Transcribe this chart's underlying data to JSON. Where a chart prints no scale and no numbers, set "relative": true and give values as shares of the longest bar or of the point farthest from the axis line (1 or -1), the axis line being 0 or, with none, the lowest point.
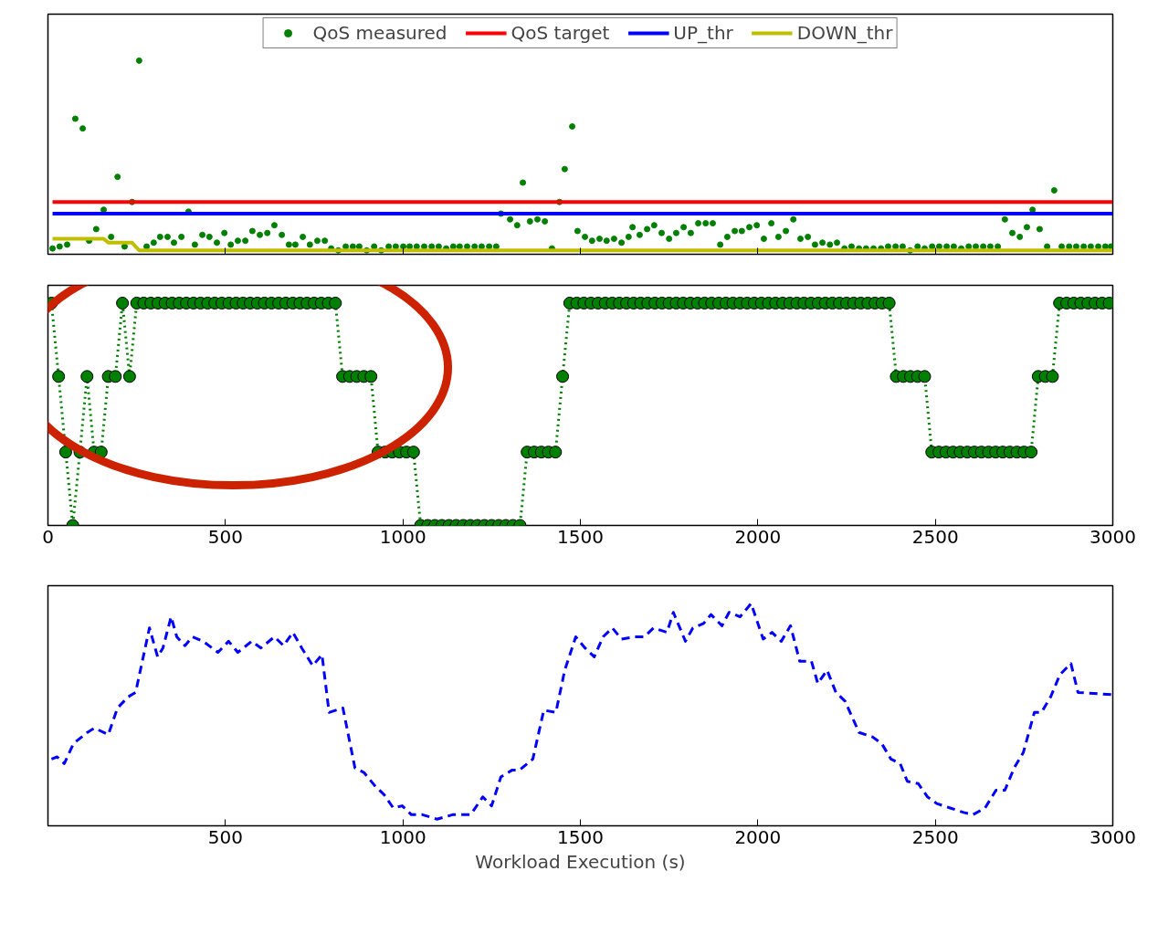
{
  "chart_data": [
    {
      "type": "scatter",
      "relative": true,
      "xlim": [
        0,
        3000
      ],
      "xticks": [
        0,
        500,
        1000,
        1500,
        2000,
        2500,
        3000
      ],
      "tick_labels": false,
      "legend": "top",
      "grid": false,
      "series": [
        {
          "name": "QoS measured",
          "type": "scatter",
          "marker": "circle",
          "color": "#008000",
          "x": [
            13,
            33,
            54,
            77,
            98,
            116,
            136,
            157,
            178,
            196,
            216,
            237,
            257,
            278,
            298,
            316,
            337,
            355,
            376,
            396,
            414,
            435,
            455,
            476,
            497,
            515,
            535,
            556,
            576,
            597,
            618,
            638,
            659,
            679,
            697,
            718,
            738,
            759,
            780,
            798,
            818,
            839,
            859,
            877,
            898,
            919,
            939,
            960,
            980,
            1001,
            1019,
            1039,
            1060,
            1081,
            1101,
            1122,
            1142,
            1160,
            1181,
            1202,
            1222,
            1243,
            1263,
            1276,
            1302,
            1322,
            1338,
            1358,
            1379,
            1400,
            1420,
            1441,
            1456,
            1477,
            1492,
            1513,
            1533,
            1554,
            1574,
            1595,
            1616,
            1636,
            1647,
            1667,
            1688,
            1708,
            1729,
            1750,
            1770,
            1791,
            1811,
            1832,
            1853,
            1873,
            1894,
            1914,
            1935,
            1955,
            1976,
            1997,
            2017,
            2038,
            2058,
            2079,
            2100,
            2120,
            2141,
            2161,
            2182,
            2203,
            2223,
            2244,
            2264,
            2285,
            2305,
            2326,
            2347,
            2367,
            2388,
            2408,
            2429,
            2450,
            2470,
            2491,
            2511,
            2532,
            2552,
            2573,
            2594,
            2614,
            2635,
            2655,
            2676,
            2696,
            2717,
            2738,
            2758,
            2774,
            2794,
            2815,
            2835,
            2856,
            2877,
            2897,
            2918,
            2938,
            2959,
            2979,
            2995
          ],
          "values": [
            0.03,
            0.04,
            0.05,
            0.7,
            0.65,
            0.07,
            0.13,
            0.23,
            0.09,
            0.4,
            0.04,
            0.27,
            1.0,
            0.04,
            0.06,
            0.09,
            0.09,
            0.06,
            0.09,
            0.22,
            0.05,
            0.1,
            0.09,
            0.06,
            0.11,
            0.05,
            0.07,
            0.07,
            0.12,
            0.1,
            0.11,
            0.15,
            0.1,
            0.05,
            0.05,
            0.09,
            0.05,
            0.07,
            0.07,
            0.03,
            0.02,
            0.04,
            0.04,
            0.04,
            0.02,
            0.04,
            0.02,
            0.04,
            0.04,
            0.04,
            0.04,
            0.04,
            0.04,
            0.04,
            0.04,
            0.03,
            0.04,
            0.04,
            0.04,
            0.04,
            0.04,
            0.04,
            0.04,
            0.21,
            0.18,
            0.15,
            0.37,
            0.17,
            0.18,
            0.17,
            0.03,
            0.27,
            0.44,
            0.66,
            0.12,
            0.09,
            0.07,
            0.08,
            0.07,
            0.08,
            0.06,
            0.09,
            0.14,
            0.1,
            0.13,
            0.15,
            0.11,
            0.08,
            0.11,
            0.14,
            0.11,
            0.16,
            0.16,
            0.16,
            0.05,
            0.09,
            0.12,
            0.12,
            0.14,
            0.15,
            0.08,
            0.16,
            0.09,
            0.12,
            0.18,
            0.08,
            0.09,
            0.05,
            0.06,
            0.05,
            0.06,
            0.03,
            0.04,
            0.03,
            0.03,
            0.03,
            0.03,
            0.04,
            0.04,
            0.04,
            0.02,
            0.04,
            0.03,
            0.04,
            0.04,
            0.04,
            0.04,
            0.03,
            0.04,
            0.04,
            0.04,
            0.04,
            0.04,
            0.18,
            0.11,
            0.09,
            0.14,
            0.23,
            0.13,
            0.04,
            0.33,
            0.04,
            0.04,
            0.04,
            0.04,
            0.04,
            0.04,
            0.04,
            0.04
          ]
        },
        {
          "name": "QoS target",
          "type": "line",
          "marker": "none",
          "color": "#ff0000",
          "x": [
            13,
            3000
          ],
          "values": [
            0.27,
            0.27
          ]
        },
        {
          "name": "UP_thr",
          "type": "line",
          "marker": "none",
          "color": "#0000ff",
          "x": [
            13,
            3000
          ],
          "values": [
            0.21,
            0.21
          ]
        },
        {
          "name": "DOWN_thr",
          "type": "line",
          "marker": "none",
          "color": "#bfbf00",
          "x": [
            13,
            157,
            170,
            237,
            257,
            3000
          ],
          "values": [
            0.08,
            0.08,
            0.06,
            0.06,
            0.02,
            0.02
          ]
        }
      ]
    },
    {
      "type": "line",
      "relative": true,
      "xlim": [
        0,
        3000
      ],
      "xticks": [
        0,
        500,
        1000,
        1500,
        2000,
        2500,
        3000
      ],
      "tick_labels": "x",
      "marker": "circle",
      "line_style": "dotted",
      "grid": false,
      "series": [
        {
          "color": "#008000",
          "x": [
            10,
            30,
            50,
            70,
            90,
            110,
            130,
            150,
            170,
            190,
            210,
            230,
            250,
            270,
            290,
            310,
            330,
            350,
            370,
            390,
            410,
            430,
            450,
            470,
            490,
            510,
            530,
            550,
            570,
            590,
            610,
            630,
            650,
            670,
            690,
            710,
            730,
            750,
            770,
            790,
            810,
            830,
            850,
            870,
            890,
            910,
            930,
            950,
            970,
            990,
            1010,
            1030,
            1050,
            1070,
            1090,
            1110,
            1130,
            1150,
            1170,
            1190,
            1210,
            1230,
            1250,
            1270,
            1290,
            1310,
            1330,
            1350,
            1370,
            1390,
            1410,
            1430,
            1450,
            1470,
            1490,
            1510,
            1530,
            1550,
            1570,
            1590,
            1610,
            1630,
            1650,
            1670,
            1690,
            1710,
            1730,
            1750,
            1770,
            1790,
            1810,
            1830,
            1850,
            1870,
            1890,
            1910,
            1930,
            1950,
            1970,
            1990,
            2010,
            2030,
            2050,
            2070,
            2090,
            2110,
            2130,
            2150,
            2170,
            2190,
            2210,
            2230,
            2250,
            2270,
            2290,
            2310,
            2330,
            2350,
            2370,
            2390,
            2410,
            2430,
            2450,
            2470,
            2490,
            2510,
            2530,
            2550,
            2570,
            2590,
            2610,
            2630,
            2650,
            2670,
            2690,
            2710,
            2730,
            2750,
            2770,
            2790,
            2810,
            2830,
            2850,
            2870,
            2890,
            2910,
            2930,
            2950,
            2970,
            2990
          ],
          "values": [
            1,
            0.67,
            0.33,
            0,
            0.33,
            0.67,
            0.33,
            0.33,
            0.67,
            0.67,
            1,
            0.67,
            1,
            1,
            1,
            1,
            1,
            1,
            1,
            1,
            1,
            1,
            1,
            1,
            1,
            1,
            1,
            1,
            1,
            1,
            1,
            1,
            1,
            1,
            1,
            1,
            1,
            1,
            1,
            1,
            1,
            0.67,
            0.67,
            0.67,
            0.67,
            0.67,
            0.33,
            0.33,
            0.33,
            0.33,
            0.33,
            0.33,
            0,
            0,
            0,
            0,
            0,
            0,
            0,
            0,
            0,
            0,
            0,
            0,
            0,
            0,
            0,
            0.33,
            0.33,
            0.33,
            0.33,
            0.33,
            0.67,
            1,
            1,
            1,
            1,
            1,
            1,
            1,
            1,
            1,
            1,
            1,
            1,
            1,
            1,
            1,
            1,
            1,
            1,
            1,
            1,
            1,
            1,
            1,
            1,
            1,
            1,
            1,
            1,
            1,
            1,
            1,
            1,
            1,
            1,
            1,
            1,
            1,
            1,
            1,
            1,
            1,
            1,
            1,
            1,
            1,
            1,
            0.67,
            0.67,
            0.67,
            0.67,
            0.67,
            0.33,
            0.33,
            0.33,
            0.33,
            0.33,
            0.33,
            0.33,
            0.33,
            0.33,
            0.33,
            0.33,
            0.33,
            0.33,
            0.33,
            0.33,
            0.67,
            0.67,
            0.67,
            1,
            1,
            1,
            1,
            1,
            1,
            1,
            1
          ]
        }
      ]
    },
    {
      "type": "line",
      "relative": true,
      "xlim": [
        0,
        3000
      ],
      "xticks": [
        500,
        1000,
        1500,
        2000,
        2500,
        3000
      ],
      "tick_labels": "x",
      "xlabel": "Workload Execution (s)",
      "marker": "none",
      "line_style": "dashed",
      "grid": false,
      "series": [
        {
          "color": "#0000ff",
          "x": [
            10,
            26,
            46,
            72,
            111,
            131,
            170,
            196,
            226,
            247,
            286,
            309,
            324,
            347,
            363,
            386,
            407,
            437,
            479,
            509,
            535,
            574,
            600,
            638,
            664,
            690,
            715,
            746,
            772,
            792,
            831,
            865,
            890,
            921,
            947,
            973,
            998,
            1024,
            1055,
            1096,
            1140,
            1191,
            1225,
            1250,
            1276,
            1307,
            1328,
            1366,
            1397,
            1431,
            1456,
            1487,
            1513,
            1539,
            1564,
            1590,
            1616,
            1654,
            1680,
            1706,
            1744,
            1762,
            1796,
            1817,
            1847,
            1868,
            1899,
            1919,
            1950,
            1981,
            2015,
            2040,
            2066,
            2092,
            2118,
            2151,
            2169,
            2195,
            2220,
            2246,
            2285,
            2323,
            2349,
            2375,
            2401,
            2421,
            2452,
            2478,
            2504,
            2542,
            2580,
            2606,
            2640,
            2671,
            2696,
            2722,
            2748,
            2779,
            2799,
            2825,
            2851,
            2882,
            2902,
            3000
          ],
          "values": [
            0.3,
            0.31,
            0.28,
            0.37,
            0.42,
            0.44,
            0.41,
            0.53,
            0.58,
            0.6,
            0.89,
            0.76,
            0.8,
            0.94,
            0.85,
            0.81,
            0.85,
            0.83,
            0.78,
            0.83,
            0.78,
            0.83,
            0.8,
            0.85,
            0.81,
            0.87,
            0.8,
            0.72,
            0.77,
            0.51,
            0.53,
            0.26,
            0.24,
            0.18,
            0.14,
            0.08,
            0.09,
            0.05,
            0.05,
            0.03,
            0.05,
            0.05,
            0.13,
            0.09,
            0.22,
            0.25,
            0.25,
            0.3,
            0.52,
            0.51,
            0.7,
            0.85,
            0.8,
            0.76,
            0.85,
            0.89,
            0.84,
            0.85,
            0.85,
            0.89,
            0.87,
            0.96,
            0.83,
            0.89,
            0.91,
            0.95,
            0.9,
            0.96,
            0.94,
            1.0,
            0.84,
            0.87,
            0.83,
            0.9,
            0.74,
            0.74,
            0.64,
            0.7,
            0.6,
            0.56,
            0.42,
            0.4,
            0.37,
            0.3,
            0.28,
            0.2,
            0.19,
            0.13,
            0.1,
            0.08,
            0.06,
            0.05,
            0.08,
            0.16,
            0.16,
            0.26,
            0.33,
            0.51,
            0.51,
            0.58,
            0.68,
            0.73,
            0.6,
            0.59
          ]
        }
      ]
    }
  ]
}
